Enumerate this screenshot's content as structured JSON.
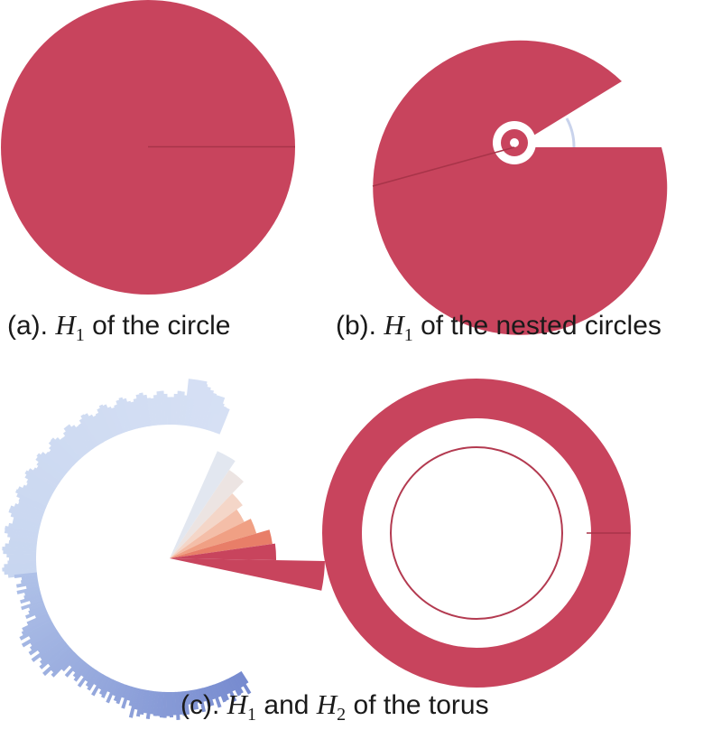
{
  "colors": {
    "main": "#c8445d",
    "crease": "#a83449",
    "ring_line": "#b33a50",
    "arc_thin": "#c9d3ec",
    "background": "#ffffff",
    "text": "#1a1a1a"
  },
  "panels": [
    {
      "id": "a",
      "caption": {
        "prefix": "(a). ",
        "math": "H",
        "sub": "1",
        "suffix": " of the circle"
      }
    },
    {
      "id": "b",
      "caption": {
        "prefix": "(b). ",
        "math": "H",
        "sub": "1",
        "suffix": " of the nested circles"
      }
    },
    {
      "id": "c",
      "caption": {
        "prefix": "(c). ",
        "math": "H",
        "sub": "1",
        "middle": " and ",
        "math2": "H",
        "sub2": "2",
        "suffix": " of the torus"
      }
    }
  ]
}
